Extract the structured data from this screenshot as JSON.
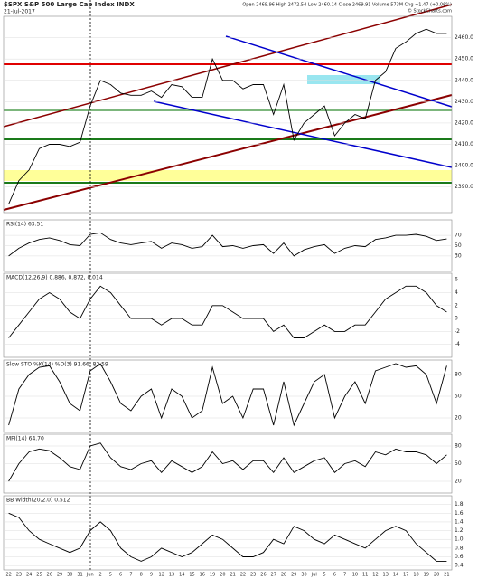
{
  "chart_data": [
    {
      "type": "line",
      "title": "$SPX S&P 500 Large Cap Index INDX",
      "date": "21-Jul-2017",
      "quote": "Open 2469.96 High 2472.54 Low 2460.14 Close 2469.91 Volume 573M Chg +1.47 (+0.06%)",
      "source": "© StockCharts.com",
      "ylim": [
        2378,
        2470
      ],
      "yticks": [
        {
          "value": 2390,
          "label": "2390.0"
        },
        {
          "value": 2400,
          "label": "2400.0"
        },
        {
          "value": 2410,
          "label": "2410.0"
        },
        {
          "value": 2420,
          "label": "2420.0"
        },
        {
          "value": 2430,
          "label": "2430.0"
        },
        {
          "value": 2440,
          "label": "2440.0"
        },
        {
          "value": 2450,
          "label": "2450.0"
        },
        {
          "value": 2460,
          "label": "2460.0"
        }
      ],
      "grid": true,
      "series": [
        {
          "name": "$SPX",
          "color": "#000000",
          "values": [
            2382,
            2393,
            2398,
            2408,
            2410,
            2410,
            2409,
            2411,
            2428,
            2440,
            2438,
            2434,
            2433,
            2433,
            2435,
            2432,
            2438,
            2437,
            2432,
            2432,
            2450,
            2440,
            2440,
            2436,
            2438,
            2438,
            2424,
            2438,
            2412,
            2420,
            2424,
            2428,
            2414,
            2420,
            2424,
            2422,
            2440,
            2444,
            2455,
            2458,
            2462,
            2464,
            2462,
            2462
          ]
        }
      ]
    },
    {
      "type": "line",
      "title": "RSI(14) 63.51",
      "ylim": [
        0,
        100
      ],
      "yticks": [
        30,
        50,
        70
      ],
      "grid": true,
      "series": [
        {
          "name": "RSI",
          "color": "#000000",
          "values": [
            30,
            45,
            55,
            62,
            65,
            60,
            52,
            50,
            72,
            75,
            62,
            55,
            52,
            55,
            58,
            45,
            55,
            52,
            45,
            48,
            70,
            48,
            50,
            45,
            50,
            52,
            35,
            55,
            30,
            42,
            48,
            52,
            35,
            45,
            50,
            48,
            62,
            65,
            70,
            70,
            72,
            68,
            60,
            63
          ]
        }
      ]
    },
    {
      "type": "line",
      "title": "MACD(12,26,9) 0.886, 0.872, 0.014",
      "ylim": [
        -6,
        7
      ],
      "yticks": [
        -4,
        -2,
        0,
        2,
        4,
        6
      ],
      "grid": true,
      "series": [
        {
          "name": "MACD",
          "color": "#000000",
          "values": [
            -3,
            -1,
            1,
            3,
            4,
            3,
            1,
            0,
            3,
            5,
            4,
            2,
            0,
            0,
            0,
            -1,
            0,
            0,
            -1,
            -1,
            2,
            2,
            1,
            0,
            0,
            0,
            -2,
            -1,
            -3,
            -3,
            -2,
            -1,
            -2,
            -2,
            -1,
            -1,
            1,
            3,
            4,
            5,
            5,
            4,
            2,
            1
          ]
        }
      ]
    },
    {
      "type": "line",
      "title": "Slow STO %K(14) %D(3) 91.66, 82.59",
      "ylim": [
        0,
        100
      ],
      "yticks": [
        20,
        50,
        80
      ],
      "grid": true,
      "series": [
        {
          "name": "%K",
          "color": "#000000",
          "values": [
            10,
            60,
            80,
            90,
            92,
            70,
            40,
            30,
            85,
            95,
            70,
            40,
            30,
            50,
            60,
            20,
            60,
            50,
            20,
            30,
            90,
            40,
            50,
            20,
            60,
            60,
            10,
            70,
            10,
            40,
            70,
            80,
            20,
            50,
            70,
            40,
            85,
            90,
            95,
            90,
            92,
            80,
            40,
            92
          ]
        }
      ]
    },
    {
      "type": "line",
      "title": "MFI(14) 64.70",
      "ylim": [
        0,
        100
      ],
      "yticks": [
        20,
        50,
        80
      ],
      "grid": true,
      "series": [
        {
          "name": "MFI",
          "color": "#000000",
          "values": [
            20,
            50,
            70,
            75,
            72,
            60,
            45,
            40,
            80,
            85,
            60,
            45,
            40,
            50,
            55,
            35,
            55,
            45,
            35,
            45,
            70,
            50,
            55,
            40,
            55,
            55,
            35,
            60,
            35,
            45,
            55,
            60,
            35,
            50,
            55,
            45,
            70,
            65,
            75,
            70,
            70,
            65,
            50,
            65
          ]
        }
      ]
    },
    {
      "type": "line",
      "title": "BB Width(20,2.0) 0.512",
      "ylim": [
        0.3,
        2.0
      ],
      "yticks": [
        0.4,
        0.6,
        0.8,
        {
          "value": 1,
          "label": "1.0"
        },
        1.2,
        1.4,
        1.6,
        1.8
      ],
      "grid": true,
      "categories": [
        "22",
        "23",
        "24",
        "25",
        "26",
        "29",
        "30",
        "31",
        "Jun",
        "2",
        "5",
        "6",
        "7",
        "8",
        "9",
        "12",
        "13",
        "14",
        "15",
        "16",
        "19",
        "20",
        "21",
        "22",
        "23",
        "26",
        "27",
        "28",
        "29",
        "30",
        "Jul",
        "5",
        "6",
        "7",
        "10",
        "11",
        "12",
        "13",
        "14",
        "17",
        "18",
        "19",
        "20",
        "21"
      ],
      "series": [
        {
          "name": "BB Width",
          "color": "#000000",
          "values": [
            1.6,
            1.5,
            1.2,
            1.0,
            0.9,
            0.8,
            0.7,
            0.8,
            1.2,
            1.4,
            1.2,
            0.8,
            0.6,
            0.5,
            0.6,
            0.8,
            0.7,
            0.6,
            0.7,
            0.9,
            1.1,
            1.0,
            0.8,
            0.6,
            0.6,
            0.7,
            1.0,
            0.9,
            1.3,
            1.2,
            1.0,
            0.9,
            1.1,
            1.0,
            0.9,
            0.8,
            1.0,
            1.2,
            1.3,
            1.2,
            0.9,
            0.7,
            0.5,
            0.5
          ]
        }
      ]
    }
  ]
}
